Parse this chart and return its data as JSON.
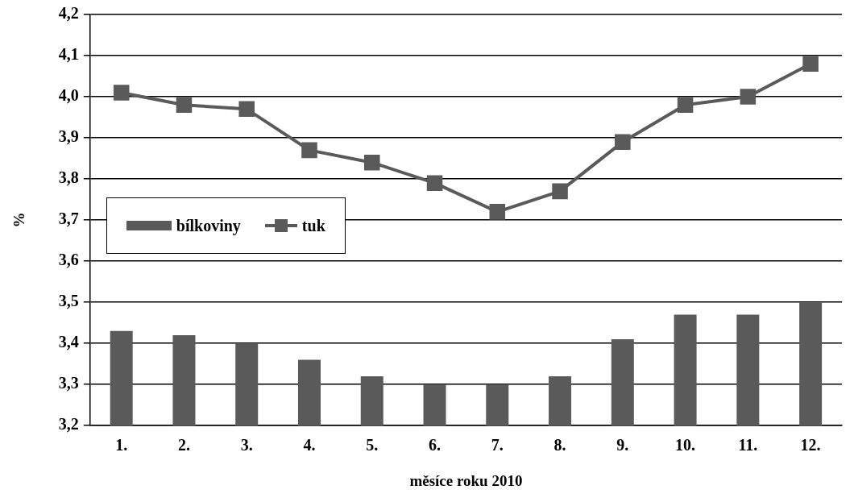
{
  "chart_data": {
    "type": "bar",
    "xlabel": "měsíce roku 2010",
    "ylabel": "%",
    "categories": [
      "1.",
      "2.",
      "3.",
      "4.",
      "5.",
      "6.",
      "7.",
      "8.",
      "9.",
      "10.",
      "11.",
      "12."
    ],
    "series": [
      {
        "name": "bílkoviny",
        "color": "#5a5a5a",
        "values": [
          3.43,
          3.42,
          3.4,
          3.36,
          3.32,
          3.3,
          3.3,
          3.32,
          3.41,
          3.47,
          3.47,
          3.5
        ]
      },
      {
        "name": "tuk",
        "type": "line",
        "color": "#5a5a5a",
        "marker": "square",
        "values": [
          4.01,
          3.98,
          3.97,
          3.87,
          3.84,
          3.79,
          3.72,
          3.77,
          3.89,
          3.98,
          4.0,
          4.08
        ]
      }
    ],
    "ylim": [
      3.2,
      4.2
    ],
    "yticks": [
      {
        "value": 3.2,
        "label": "3,2"
      },
      {
        "value": 3.3,
        "label": "3,3"
      },
      {
        "value": 3.4,
        "label": "3,4"
      },
      {
        "value": 3.5,
        "label": "3,5"
      },
      {
        "value": 3.6,
        "label": "3,6"
      },
      {
        "value": 3.7,
        "label": "3,7"
      },
      {
        "value": 3.8,
        "label": "3,8"
      },
      {
        "value": 3.9,
        "label": "3,9"
      },
      {
        "value": 4.0,
        "label": "4,0"
      },
      {
        "value": 4.1,
        "label": "4,1"
      },
      {
        "value": 4.2,
        "label": "4,2"
      }
    ],
    "grid": "y",
    "legend": "left"
  }
}
